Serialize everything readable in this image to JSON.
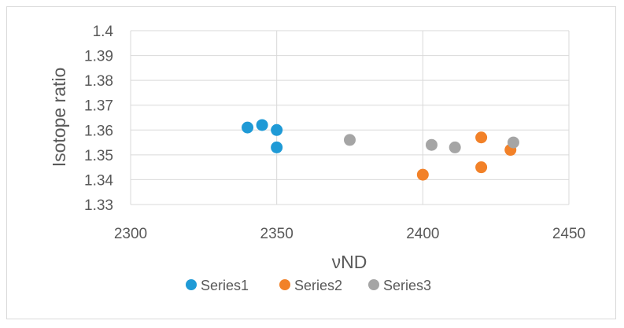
{
  "chart_data": {
    "type": "scatter",
    "title": "",
    "xlabel": "νND",
    "ylabel": "Isotope ratio",
    "xlim": [
      2300,
      2450
    ],
    "ylim": [
      1.33,
      1.4
    ],
    "x_ticks": [
      "2300",
      "2350",
      "2400",
      "2450"
    ],
    "y_ticks": [
      "1.33",
      "1.34",
      "1.35",
      "1.36",
      "1.37",
      "1.38",
      "1.39",
      "1.4"
    ],
    "grid": true,
    "legend_position": "bottom",
    "series": [
      {
        "name": "Series1",
        "color": "#1f9ad6",
        "points": [
          {
            "x": 2340,
            "y": 1.361
          },
          {
            "x": 2345,
            "y": 1.362
          },
          {
            "x": 2350,
            "y": 1.36
          },
          {
            "x": 2350,
            "y": 1.353
          }
        ]
      },
      {
        "name": "Series2",
        "color": "#f28128",
        "points": [
          {
            "x": 2400,
            "y": 1.342
          },
          {
            "x": 2420,
            "y": 1.357
          },
          {
            "x": 2420,
            "y": 1.345
          },
          {
            "x": 2430,
            "y": 1.352
          }
        ]
      },
      {
        "name": "Series3",
        "color": "#a5a5a5",
        "points": [
          {
            "x": 2375,
            "y": 1.356
          },
          {
            "x": 2403,
            "y": 1.354
          },
          {
            "x": 2411,
            "y": 1.353
          },
          {
            "x": 2431,
            "y": 1.355
          }
        ]
      }
    ]
  }
}
